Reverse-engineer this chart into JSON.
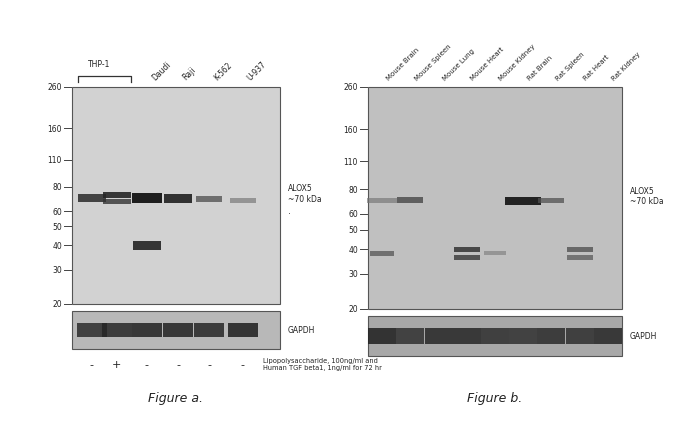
{
  "bg_color": "#f0f0f0",
  "fig_width": 6.5,
  "fig_height": 4.07,
  "panel_a": {
    "title": "Figure a.",
    "main_blot_color": "#d2d2d2",
    "gapdh_blot_color": "#b8b8b8",
    "mw_labels": [
      260,
      160,
      110,
      80,
      60,
      50,
      40,
      30,
      20
    ],
    "alox5_label": "ALOX5\n~70 kDa",
    "gapdh_label": "GAPDH",
    "lps_label": "Lipopolysaccharide, 100ng/ml and\nHuman TGF beta1, 1ng/ml for 72 hr",
    "plus_minus": [
      "-",
      "+",
      "-",
      "-",
      "-",
      "-"
    ]
  },
  "panel_b": {
    "title": "Figure b.",
    "main_blot_color": "#c0c0c0",
    "gapdh_blot_color": "#a8a8a8",
    "mw_labels": [
      260,
      160,
      110,
      80,
      60,
      50,
      40,
      30,
      20
    ],
    "alox5_label": "ALOX5\n~70 kDa",
    "gapdh_label": "GAPDH",
    "sample_labels": [
      "Mouse Brain",
      "Mouse Spleen",
      "Mouse Lung",
      "Mouse Heart",
      "Mouse Kidney",
      "Rat Brain",
      "Rat Spleen",
      "Rat Heart",
      "Rat Kidney"
    ]
  }
}
